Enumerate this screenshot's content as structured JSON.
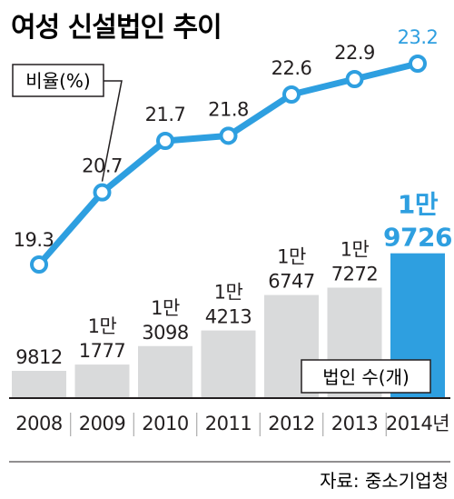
{
  "title": "여성 신설법인 추이",
  "source": "자료: 중소기업청",
  "chart_data": {
    "type": "bar+line",
    "categories": [
      "2008",
      "2009",
      "2010",
      "2011",
      "2012",
      "2013",
      "2014년"
    ],
    "bar_series": {
      "name": "법인 수(개)",
      "values": [
        9812,
        11777,
        13098,
        14213,
        16747,
        17272,
        19726
      ],
      "labels_top": [
        "",
        "1만",
        "1만",
        "1만",
        "1만",
        "1만",
        "1만"
      ],
      "labels_bottom": [
        "9812",
        "1777",
        "3098",
        "4213",
        "6747",
        "7272",
        "9726"
      ],
      "color": "#d9dadb",
      "highlight_color": "#2e9fe0"
    },
    "line_series": {
      "name": "비율(%)",
      "values": [
        19.3,
        20.7,
        21.7,
        21.8,
        22.6,
        22.9,
        23.2
      ],
      "labels": [
        "19.3",
        "20.7",
        "21.7",
        "21.8",
        "22.6",
        "22.9",
        "23.2"
      ],
      "color": "#2e9fe0"
    },
    "highlight_index": 6
  }
}
